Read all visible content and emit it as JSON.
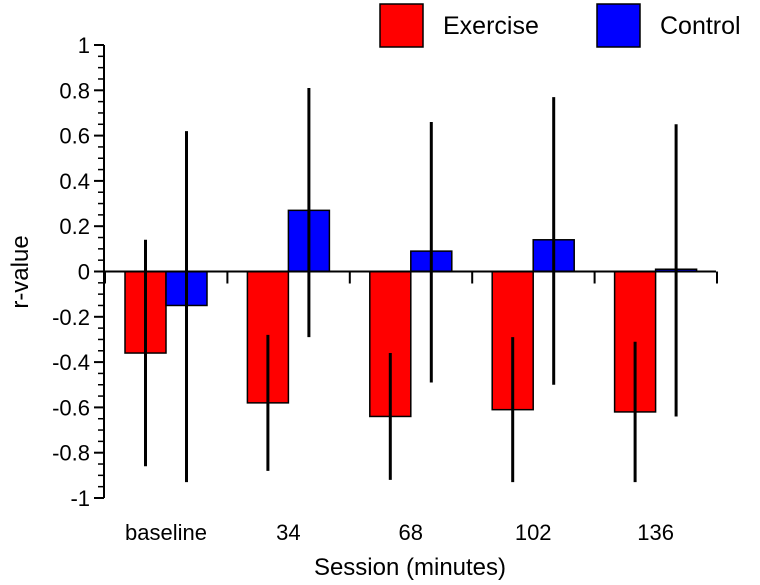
{
  "chart_data": {
    "type": "bar",
    "title": "",
    "xlabel": "Session (minutes)",
    "ylabel": "r-value",
    "categories": [
      "baseline",
      "34",
      "68",
      "102",
      "136"
    ],
    "series": [
      {
        "name": "Exercise",
        "color": "#ff0000",
        "values": [
          -0.36,
          -0.58,
          -0.64,
          -0.61,
          -0.62
        ],
        "error_low": [
          -0.86,
          -0.88,
          -0.92,
          -0.93,
          -0.93
        ],
        "error_high": [
          0.14,
          -0.28,
          -0.36,
          -0.29,
          -0.31
        ]
      },
      {
        "name": "Control",
        "color": "#0000ff",
        "values": [
          -0.15,
          0.27,
          0.09,
          0.14,
          0.01
        ],
        "error_low": [
          -0.93,
          -0.29,
          -0.49,
          -0.5,
          -0.64
        ],
        "error_high": [
          0.62,
          0.81,
          0.66,
          0.77,
          0.65
        ]
      }
    ],
    "ylim": [
      -1,
      1
    ],
    "yticks": [
      1,
      0.8,
      0.6,
      0.4,
      0.2,
      0,
      -0.2,
      -0.4,
      -0.6,
      -0.8,
      -1
    ],
    "ytick_labels": [
      "1",
      "0.8",
      "0.6",
      "0.4",
      "0.2",
      "0",
      "-0.2",
      "-0.4",
      "-0.6",
      "-0.8",
      "-1"
    ],
    "legend_position": "top-right",
    "grid": false
  }
}
